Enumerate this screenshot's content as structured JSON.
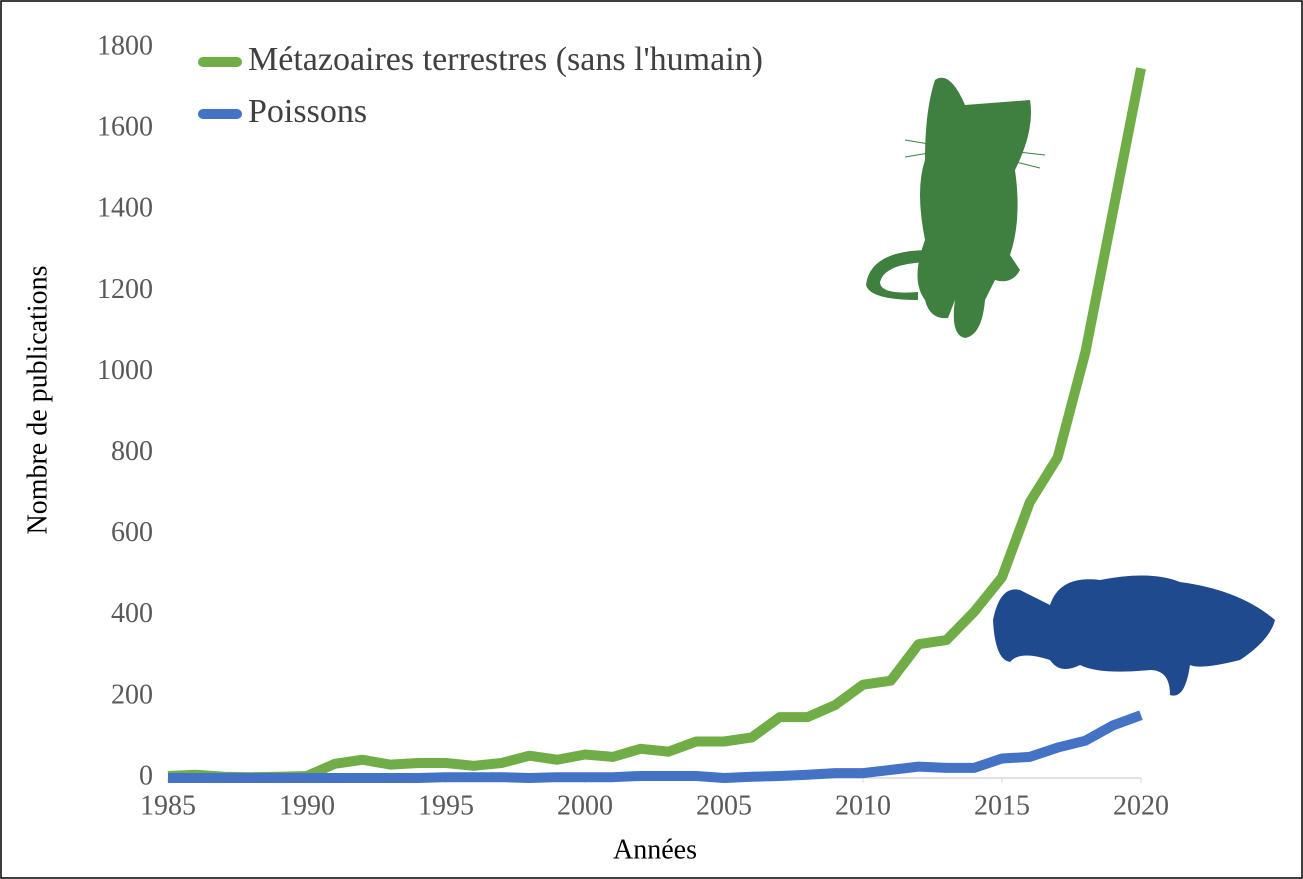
{
  "chart_data": {
    "type": "line",
    "x_label": "Années",
    "y_label": "Nombre de publications",
    "x": [
      1985,
      1986,
      1987,
      1988,
      1989,
      1990,
      1991,
      1992,
      1993,
      1994,
      1995,
      1996,
      1997,
      1998,
      1999,
      2000,
      2001,
      2002,
      2003,
      2004,
      2005,
      2006,
      2007,
      2008,
      2009,
      2010,
      2011,
      2012,
      2013,
      2014,
      2015,
      2016,
      2017,
      2018,
      2019,
      2020
    ],
    "series": [
      {
        "name": "Métazoaires terrestres (sans l'humain)",
        "color": "#70ad47",
        "values": [
          5,
          8,
          3,
          2,
          3,
          5,
          35,
          45,
          33,
          37,
          37,
          30,
          37,
          55,
          45,
          58,
          52,
          72,
          65,
          90,
          90,
          100,
          150,
          150,
          180,
          230,
          240,
          330,
          340,
          410,
          495,
          680,
          790,
          1050,
          1400,
          1750
        ]
      },
      {
        "name": "Poissons",
        "color": "#4472c4",
        "values": [
          0,
          0,
          0,
          0,
          0,
          0,
          0,
          0,
          0,
          0,
          2,
          2,
          2,
          0,
          2,
          2,
          2,
          5,
          5,
          5,
          0,
          3,
          5,
          8,
          12,
          12,
          20,
          28,
          25,
          25,
          48,
          52,
          75,
          92,
          130,
          155
        ]
      }
    ],
    "xlim": [
      1985,
      2020
    ],
    "xticks": [
      1985,
      1990,
      1995,
      2000,
      2005,
      2010,
      2015,
      2020
    ],
    "ylim": [
      0,
      1800
    ],
    "yticks": [
      0,
      200,
      400,
      600,
      800,
      1000,
      1200,
      1400,
      1600,
      1800
    ],
    "grid": false,
    "legend": "top-left"
  }
}
